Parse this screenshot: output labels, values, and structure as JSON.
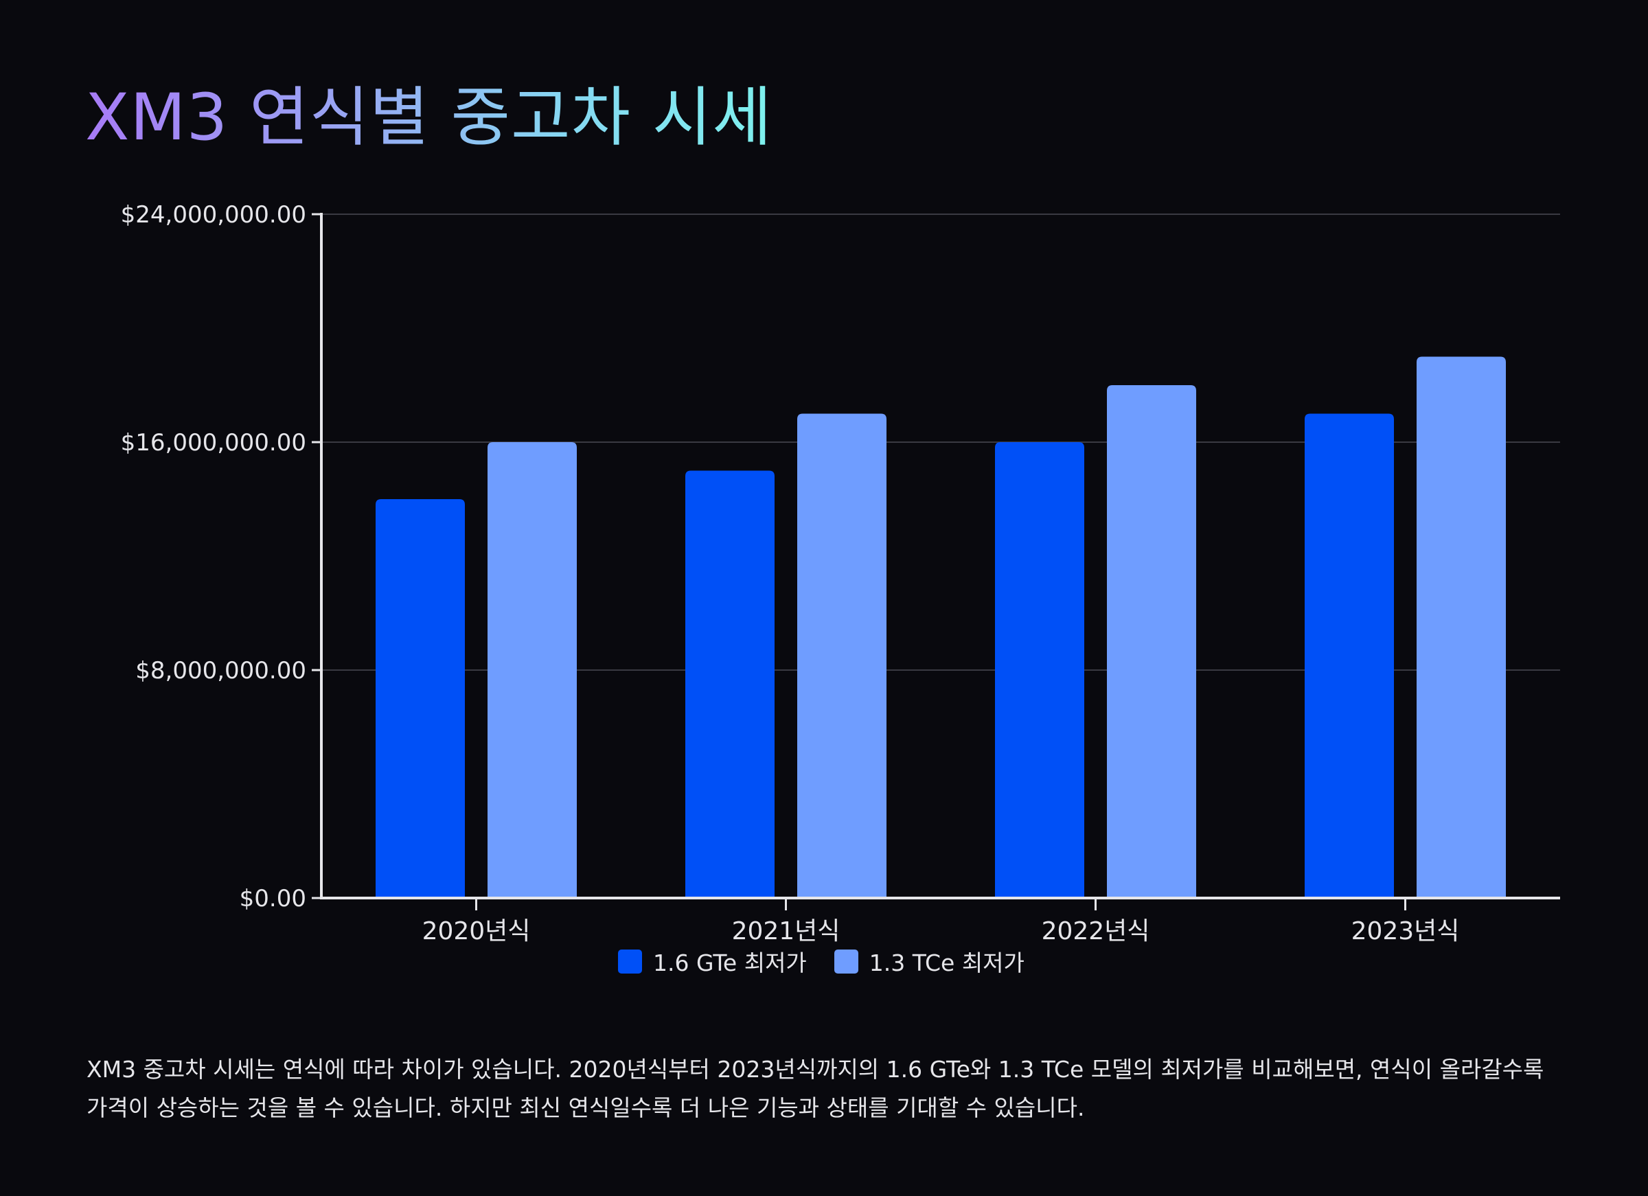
{
  "title": "XM3 연식별 중고차 시세",
  "description": "XM3 중고차 시세는 연식에 따라 차이가 있습니다. 2020년식부터 2023년식까지의 1.6 GTe와 1.3 TCe 모델의 최저가를 비교해보면, 연식이 올라갈수록 가격이 상승하는 것을 볼 수 있습니다. 하지만 최신 연식일수록 더 나은 기능과 상태를 기대할 수 있습니다.",
  "colors": {
    "series1": "#0050f7",
    "series2": "#6f9dff",
    "grid": "#3a3a42",
    "axis": "#e6e6ea",
    "text": "#e6e6ea"
  },
  "chart_data": {
    "type": "bar",
    "categories": [
      "2020년식",
      "2021년식",
      "2022년식",
      "2023년식"
    ],
    "series": [
      {
        "name": "1.6 GTe 최저가",
        "values": [
          14000000,
          15000000,
          16000000,
          17000000
        ]
      },
      {
        "name": "1.3 TCe 최저가",
        "values": [
          16000000,
          17000000,
          18000000,
          19000000
        ]
      }
    ],
    "ylim": [
      0,
      24000000
    ],
    "yticks": [
      0,
      8000000,
      16000000,
      24000000
    ],
    "ytick_labels": [
      "$0.00",
      "$8,000,000.00",
      "$16,000,000.00",
      "$24,000,000.00"
    ],
    "xlabel": "",
    "ylabel": "",
    "grid": true,
    "legend_position": "bottom-center"
  }
}
